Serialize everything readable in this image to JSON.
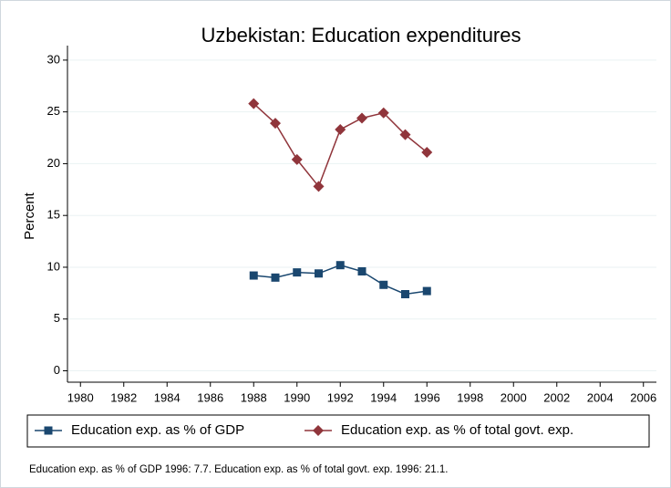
{
  "chart_data": {
    "type": "line",
    "title": "Uzbekistan: Education expenditures",
    "ylabel": "Percent",
    "x": [
      1988,
      1989,
      1990,
      1991,
      1992,
      1993,
      1994,
      1995,
      1996
    ],
    "series": [
      {
        "name": "Education exp. as % of GDP",
        "color": "#1a476f",
        "marker": "square",
        "values": [
          9.2,
          9.0,
          9.5,
          9.4,
          10.2,
          9.6,
          8.3,
          7.4,
          7.7
        ]
      },
      {
        "name": "Education exp. as % of total govt. exp.",
        "color": "#90353b",
        "marker": "diamond",
        "values": [
          25.8,
          23.9,
          20.4,
          17.8,
          23.3,
          24.4,
          24.9,
          22.8,
          21.1
        ]
      }
    ],
    "xlim": [
      1979.4,
      2006.6
    ],
    "xticks": [
      1980,
      1982,
      1984,
      1986,
      1988,
      1990,
      1992,
      1994,
      1996,
      1998,
      2000,
      2002,
      2004,
      2006
    ],
    "ylim": [
      -1.1,
      31.4
    ],
    "yticks": [
      0,
      5,
      10,
      15,
      20,
      25,
      30
    ],
    "grid": true,
    "legend": "bottom",
    "note": "Education exp. as % of GDP 1996: 7.7. Education exp. as % of total govt. exp. 1996: 21.1."
  }
}
